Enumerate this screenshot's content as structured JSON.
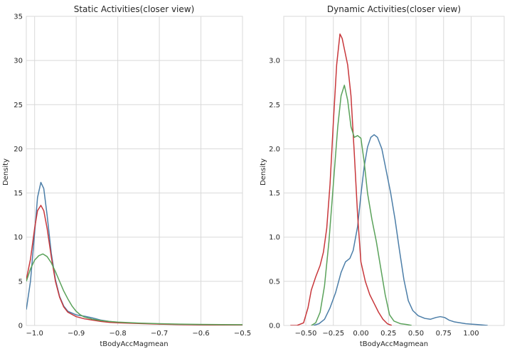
{
  "chart_data": [
    {
      "type": "line",
      "title": "Static Activities(closer view)",
      "xlabel": "tBodyAccMagmean",
      "ylabel": "Density",
      "xlim": [
        -1.02,
        -0.5
      ],
      "ylim": [
        0,
        35
      ],
      "xticks": [
        -1.0,
        -0.9,
        -0.8,
        -0.7,
        -0.6,
        -0.5
      ],
      "xtick_labels": [
        "−1.0",
        "−0.9",
        "−0.8",
        "−0.7",
        "−0.6",
        "−0.5"
      ],
      "yticks": [
        0,
        5,
        10,
        15,
        20,
        25,
        30,
        35
      ],
      "ytick_labels": [
        "0",
        "5",
        "10",
        "15",
        "20",
        "25",
        "30",
        "35"
      ],
      "grid": true,
      "series": [
        {
          "color": "#4c7ea8",
          "points": [
            [
              -1.02,
              1.8
            ],
            [
              -1.01,
              5.0
            ],
            [
              -1.0,
              10.5
            ],
            [
              -0.993,
              14.5
            ],
            [
              -0.985,
              16.2
            ],
            [
              -0.978,
              15.5
            ],
            [
              -0.97,
              12.5
            ],
            [
              -0.96,
              8.2
            ],
            [
              -0.95,
              5.2
            ],
            [
              -0.94,
              3.3
            ],
            [
              -0.93,
              2.2
            ],
            [
              -0.92,
              1.6
            ],
            [
              -0.9,
              1.2
            ],
            [
              -0.88,
              1.05
            ],
            [
              -0.86,
              0.85
            ],
            [
              -0.84,
              0.6
            ],
            [
              -0.82,
              0.45
            ],
            [
              -0.8,
              0.35
            ],
            [
              -0.75,
              0.25
            ],
            [
              -0.7,
              0.17
            ],
            [
              -0.65,
              0.12
            ],
            [
              -0.6,
              0.08
            ],
            [
              -0.55,
              0.06
            ],
            [
              -0.5,
              0.05
            ]
          ]
        },
        {
          "color": "#c8373b",
          "points": [
            [
              -1.02,
              5.2
            ],
            [
              -1.01,
              7.5
            ],
            [
              -1.0,
              11.0
            ],
            [
              -0.993,
              13.0
            ],
            [
              -0.985,
              13.6
            ],
            [
              -0.978,
              13.0
            ],
            [
              -0.97,
              11.0
            ],
            [
              -0.96,
              7.8
            ],
            [
              -0.95,
              5.0
            ],
            [
              -0.94,
              3.2
            ],
            [
              -0.93,
              2.1
            ],
            [
              -0.92,
              1.5
            ],
            [
              -0.9,
              1.0
            ],
            [
              -0.88,
              0.75
            ],
            [
              -0.86,
              0.6
            ],
            [
              -0.84,
              0.45
            ],
            [
              -0.82,
              0.35
            ],
            [
              -0.8,
              0.3
            ],
            [
              -0.75,
              0.22
            ],
            [
              -0.7,
              0.15
            ],
            [
              -0.65,
              0.1
            ],
            [
              -0.6,
              0.07
            ],
            [
              -0.55,
              0.05
            ],
            [
              -0.5,
              0.04
            ]
          ]
        },
        {
          "color": "#5aa25a",
          "points": [
            [
              -1.02,
              5.0
            ],
            [
              -1.01,
              6.4
            ],
            [
              -1.0,
              7.4
            ],
            [
              -0.99,
              7.9
            ],
            [
              -0.98,
              8.1
            ],
            [
              -0.97,
              7.8
            ],
            [
              -0.96,
              7.1
            ],
            [
              -0.95,
              6.1
            ],
            [
              -0.94,
              5.0
            ],
            [
              -0.93,
              3.9
            ],
            [
              -0.92,
              3.0
            ],
            [
              -0.91,
              2.2
            ],
            [
              -0.9,
              1.6
            ],
            [
              -0.89,
              1.2
            ],
            [
              -0.88,
              0.95
            ],
            [
              -0.86,
              0.7
            ],
            [
              -0.84,
              0.55
            ],
            [
              -0.82,
              0.45
            ],
            [
              -0.8,
              0.38
            ],
            [
              -0.75,
              0.27
            ],
            [
              -0.7,
              0.2
            ],
            [
              -0.65,
              0.15
            ],
            [
              -0.6,
              0.12
            ],
            [
              -0.55,
              0.1
            ],
            [
              -0.5,
              0.09
            ]
          ]
        }
      ]
    },
    {
      "type": "line",
      "title": "Dynamic Activities(closer view)",
      "xlabel": "tBodyAccMagmean",
      "ylabel": "Density",
      "xlim": [
        -0.7,
        1.3
      ],
      "ylim": [
        0,
        3.5
      ],
      "xticks": [
        -0.5,
        -0.25,
        0.0,
        0.25,
        0.5,
        0.75,
        1.0
      ],
      "xtick_labels": [
        "−0.50",
        "−0.25",
        "0.00",
        "0.25",
        "0.50",
        "0.75",
        "1.00"
      ],
      "yticks": [
        0.0,
        0.5,
        1.0,
        1.5,
        2.0,
        2.5,
        3.0
      ],
      "ytick_labels": [
        "0.0",
        "0.5",
        "1.0",
        "1.5",
        "2.0",
        "2.5",
        "3.0"
      ],
      "grid": true,
      "series": [
        {
          "color": "#4c7ea8",
          "points": [
            [
              -0.43,
              0.0
            ],
            [
              -0.38,
              0.02
            ],
            [
              -0.33,
              0.07
            ],
            [
              -0.28,
              0.2
            ],
            [
              -0.23,
              0.37
            ],
            [
              -0.18,
              0.6
            ],
            [
              -0.14,
              0.72
            ],
            [
              -0.1,
              0.76
            ],
            [
              -0.07,
              0.85
            ],
            [
              -0.03,
              1.12
            ],
            [
              0.0,
              1.48
            ],
            [
              0.03,
              1.8
            ],
            [
              0.06,
              2.02
            ],
            [
              0.09,
              2.13
            ],
            [
              0.12,
              2.16
            ],
            [
              0.15,
              2.13
            ],
            [
              0.19,
              2.0
            ],
            [
              0.23,
              1.75
            ],
            [
              0.27,
              1.5
            ],
            [
              0.31,
              1.2
            ],
            [
              0.35,
              0.85
            ],
            [
              0.39,
              0.52
            ],
            [
              0.43,
              0.28
            ],
            [
              0.47,
              0.17
            ],
            [
              0.52,
              0.11
            ],
            [
              0.58,
              0.08
            ],
            [
              0.63,
              0.07
            ],
            [
              0.68,
              0.09
            ],
            [
              0.72,
              0.1
            ],
            [
              0.76,
              0.09
            ],
            [
              0.8,
              0.06
            ],
            [
              0.85,
              0.04
            ],
            [
              0.9,
              0.03
            ],
            [
              0.95,
              0.02
            ],
            [
              1.0,
              0.015
            ],
            [
              1.06,
              0.01
            ],
            [
              1.15,
              0.0
            ]
          ]
        },
        {
          "color": "#c8373b",
          "points": [
            [
              -0.64,
              0.0
            ],
            [
              -0.58,
              0.0
            ],
            [
              -0.52,
              0.03
            ],
            [
              -0.48,
              0.2
            ],
            [
              -0.45,
              0.4
            ],
            [
              -0.41,
              0.55
            ],
            [
              -0.37,
              0.68
            ],
            [
              -0.34,
              0.83
            ],
            [
              -0.31,
              1.1
            ],
            [
              -0.28,
              1.6
            ],
            [
              -0.25,
              2.3
            ],
            [
              -0.22,
              2.95
            ],
            [
              -0.19,
              3.3
            ],
            [
              -0.17,
              3.25
            ],
            [
              -0.15,
              3.13
            ],
            [
              -0.12,
              2.95
            ],
            [
              -0.09,
              2.6
            ],
            [
              -0.06,
              1.95
            ],
            [
              -0.03,
              1.25
            ],
            [
              0.0,
              0.72
            ],
            [
              0.04,
              0.5
            ],
            [
              0.08,
              0.35
            ],
            [
              0.12,
              0.25
            ],
            [
              0.16,
              0.15
            ],
            [
              0.2,
              0.07
            ],
            [
              0.24,
              0.02
            ],
            [
              0.28,
              0.0
            ]
          ]
        },
        {
          "color": "#5aa25a",
          "points": [
            [
              -0.45,
              0.0
            ],
            [
              -0.41,
              0.03
            ],
            [
              -0.37,
              0.15
            ],
            [
              -0.33,
              0.45
            ],
            [
              -0.29,
              0.95
            ],
            [
              -0.25,
              1.6
            ],
            [
              -0.21,
              2.25
            ],
            [
              -0.18,
              2.6
            ],
            [
              -0.15,
              2.72
            ],
            [
              -0.12,
              2.55
            ],
            [
              -0.09,
              2.25
            ],
            [
              -0.06,
              2.13
            ],
            [
              -0.03,
              2.15
            ],
            [
              0.0,
              2.12
            ],
            [
              0.03,
              1.85
            ],
            [
              0.06,
              1.5
            ],
            [
              0.1,
              1.2
            ],
            [
              0.14,
              0.95
            ],
            [
              0.18,
              0.65
            ],
            [
              0.22,
              0.35
            ],
            [
              0.26,
              0.12
            ],
            [
              0.3,
              0.05
            ],
            [
              0.36,
              0.02
            ],
            [
              0.42,
              0.01
            ],
            [
              0.46,
              0.0
            ]
          ]
        }
      ]
    }
  ]
}
